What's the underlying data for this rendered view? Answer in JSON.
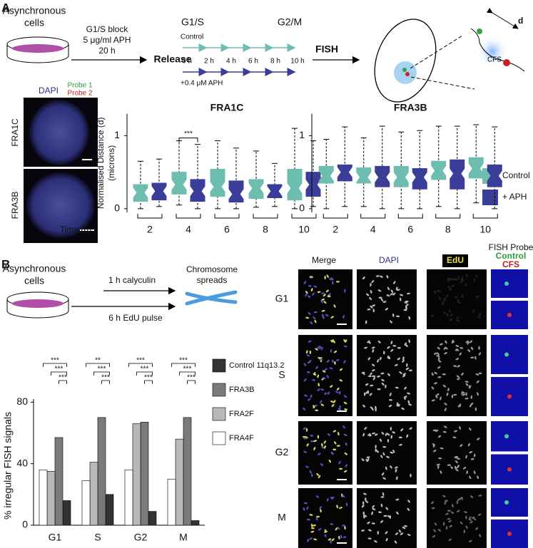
{
  "panel_a": {
    "label": "A",
    "dish_label": [
      "Asynchronous",
      "cells"
    ],
    "block": [
      "G1/S block",
      "5 μg/ml APH",
      "20 h"
    ],
    "release": "Release",
    "phase_start": "G1/S",
    "phase_end": "G2/M",
    "control_row": "Control",
    "timepoints": [
      "0 h",
      "2 h",
      "4 h",
      "6 h",
      "8 h",
      "10 h"
    ],
    "aph_row": "+0.4 μM APH",
    "fish": "FISH",
    "distance": "d",
    "cfs": "CFS",
    "stain": "DAPI",
    "probes": [
      "Probe 1",
      "Probe 2"
    ],
    "image_rows": [
      "FRA1C",
      "FRA3B"
    ],
    "time_label": "Time (h)"
  },
  "panel_b": {
    "label": "B",
    "dish_label": [
      "Asynchronous",
      "cells"
    ],
    "treatments": [
      "1 h calyculin",
      "6 h EdU pulse"
    ],
    "spreads": [
      "Chromosome",
      "spreads"
    ],
    "columns": [
      "Merge",
      "DAPI",
      "EdU"
    ],
    "fish_header": "FISH Probe",
    "fish_probes": [
      "Control",
      "CFS"
    ],
    "rows": [
      "G1",
      "S",
      "G2",
      "M"
    ]
  },
  "chart_data": [
    {
      "type": "box",
      "title": "FRA1C",
      "ylabel": [
        "Normalised Distance (d)",
        "(microns)"
      ],
      "categories": [
        "2",
        "4",
        "6",
        "8",
        "10"
      ],
      "ylim": [
        -0.05,
        1.3
      ],
      "yticks": [
        0,
        1
      ],
      "annotation": "***",
      "series": [
        {
          "name": "Control",
          "color": "#6dbdb0",
          "values": [
            [
              0.0,
              0.1,
              0.22,
              0.33,
              0.65
            ],
            [
              0.05,
              0.2,
              0.33,
              0.5,
              0.93
            ],
            [
              0.0,
              0.17,
              0.3,
              0.54,
              0.93
            ],
            [
              0.02,
              0.14,
              0.28,
              0.4,
              0.79
            ],
            [
              0.0,
              0.12,
              0.28,
              0.54,
              1.1
            ]
          ]
        },
        {
          "name": "+ APH",
          "color": "#3a3e98",
          "values": [
            [
              0.03,
              0.12,
              0.24,
              0.35,
              0.68
            ],
            [
              0.0,
              0.1,
              0.24,
              0.4,
              0.88
            ],
            [
              0.0,
              0.09,
              0.2,
              0.38,
              0.83
            ],
            [
              0.03,
              0.15,
              0.24,
              0.33,
              0.62
            ],
            [
              0.03,
              0.17,
              0.33,
              0.5,
              0.93
            ]
          ]
        }
      ]
    },
    {
      "type": "box",
      "title": "FRA3B",
      "categories": [
        "2",
        "4",
        "6",
        "8",
        "10"
      ],
      "ylim": [
        -0.05,
        1.3
      ],
      "yticks": [
        0,
        1
      ],
      "series": [
        {
          "color": "#6dbdb0",
          "values": [
            [
              0.0,
              0.35,
              0.45,
              0.58,
              0.95
            ],
            [
              0.03,
              0.35,
              0.43,
              0.56,
              0.97
            ],
            [
              0.0,
              0.3,
              0.43,
              0.58,
              1.05
            ],
            [
              0.03,
              0.4,
              0.52,
              0.65,
              1.13
            ],
            [
              0.08,
              0.42,
              0.55,
              0.7,
              1.15
            ]
          ]
        },
        {
          "color": "#3a3e98",
          "values": [
            [
              0.03,
              0.38,
              0.5,
              0.6,
              1.12
            ],
            [
              0.0,
              0.3,
              0.43,
              0.58,
              1.13
            ],
            [
              0.0,
              0.27,
              0.43,
              0.55,
              1.07
            ],
            [
              0.0,
              0.27,
              0.48,
              0.67,
              1.13
            ],
            [
              0.0,
              0.3,
              0.45,
              0.6,
              1.12
            ]
          ]
        }
      ]
    },
    {
      "type": "bar",
      "ylabel": "% irregular FISH signals",
      "categories": [
        "G1",
        "S",
        "G2",
        "M"
      ],
      "ylim": [
        0,
        82
      ],
      "yticks": [
        0,
        40,
        80
      ],
      "significance": [
        [
          "***",
          "***",
          "***"
        ],
        [
          "**",
          "***",
          "***"
        ],
        [
          "***",
          "***",
          "***"
        ],
        [
          "***",
          "***",
          "***"
        ]
      ],
      "series": [
        {
          "name": "Control 11q13.2",
          "color": "#333333",
          "values": [
            16,
            20,
            9,
            3
          ]
        },
        {
          "name": "FRA3B",
          "color": "#7a7a7a",
          "values": [
            57,
            70,
            67,
            70
          ]
        },
        {
          "name": "FRA2F",
          "color": "#b8b8b8",
          "values": [
            35,
            41,
            66,
            56
          ]
        },
        {
          "name": "FRA4F",
          "color": "#ffffff",
          "values": [
            36,
            29,
            36,
            30
          ]
        }
      ]
    }
  ]
}
